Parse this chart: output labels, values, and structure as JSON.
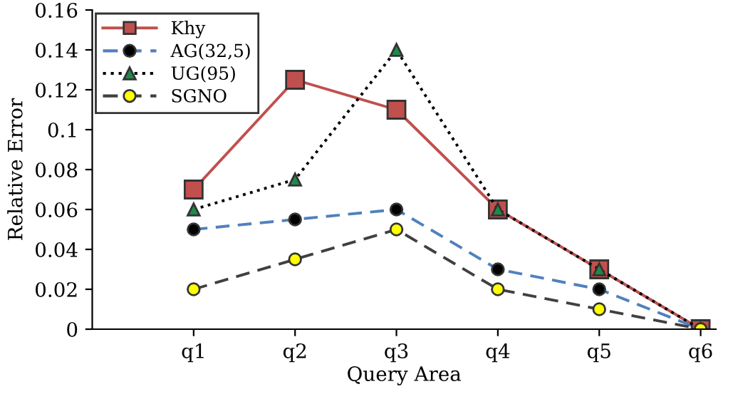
{
  "chart_data": {
    "type": "line",
    "xlabel": "Query Area",
    "ylabel": "Relative Error",
    "categories": [
      "q1",
      "q2",
      "q3",
      "q4",
      "q5",
      "q6"
    ],
    "series": [
      {
        "name": "Khy",
        "color": "#c0504d",
        "colors": [
          "#c0504d",
          "#c0504d",
          "#c0504d",
          "#c0504d",
          "#c0504d",
          "#c0504d"
        ],
        "marker": "square",
        "line_style": "solid",
        "values": [
          0.07,
          0.125,
          0.11,
          0.06,
          0.03,
          0
        ]
      },
      {
        "name": "AG(32,5)",
        "color": "#4f81bd",
        "colors": [
          "#000000",
          "#000000",
          "#000000",
          "#000000",
          "#000000",
          "#000000"
        ],
        "marker": "circle",
        "line_style": "dashed",
        "values": [
          0.05,
          0.055,
          0.06,
          0.03,
          0.02,
          0
        ]
      },
      {
        "name": "UG(95)",
        "color": "#000000",
        "colors": [
          "#1e8a4a",
          "#1e8a4a",
          "#1e8a4a",
          "#1e8a4a",
          "#1e8a4a",
          "#1e8a4a"
        ],
        "marker": "triangle",
        "line_style": "dotted",
        "values": [
          0.06,
          0.075,
          0.14,
          0.06,
          0.03,
          0
        ]
      },
      {
        "name": "SGNO",
        "color": "#404040",
        "colors": [
          "#ffff00",
          "#ffff00",
          "#ffff00",
          "#ffff00",
          "#ffff00",
          "#ffff00"
        ],
        "marker": "circle",
        "line_style": "dashed",
        "values": [
          0.02,
          0.035,
          0.05,
          0.02,
          0.01,
          0
        ]
      }
    ],
    "ylim": [
      0,
      0.16
    ],
    "yticks": [
      0,
      0.02,
      0.04,
      0.06,
      0.08,
      0.1,
      0.12,
      0.14,
      0.16
    ],
    "grid": false,
    "legend": "top left"
  }
}
